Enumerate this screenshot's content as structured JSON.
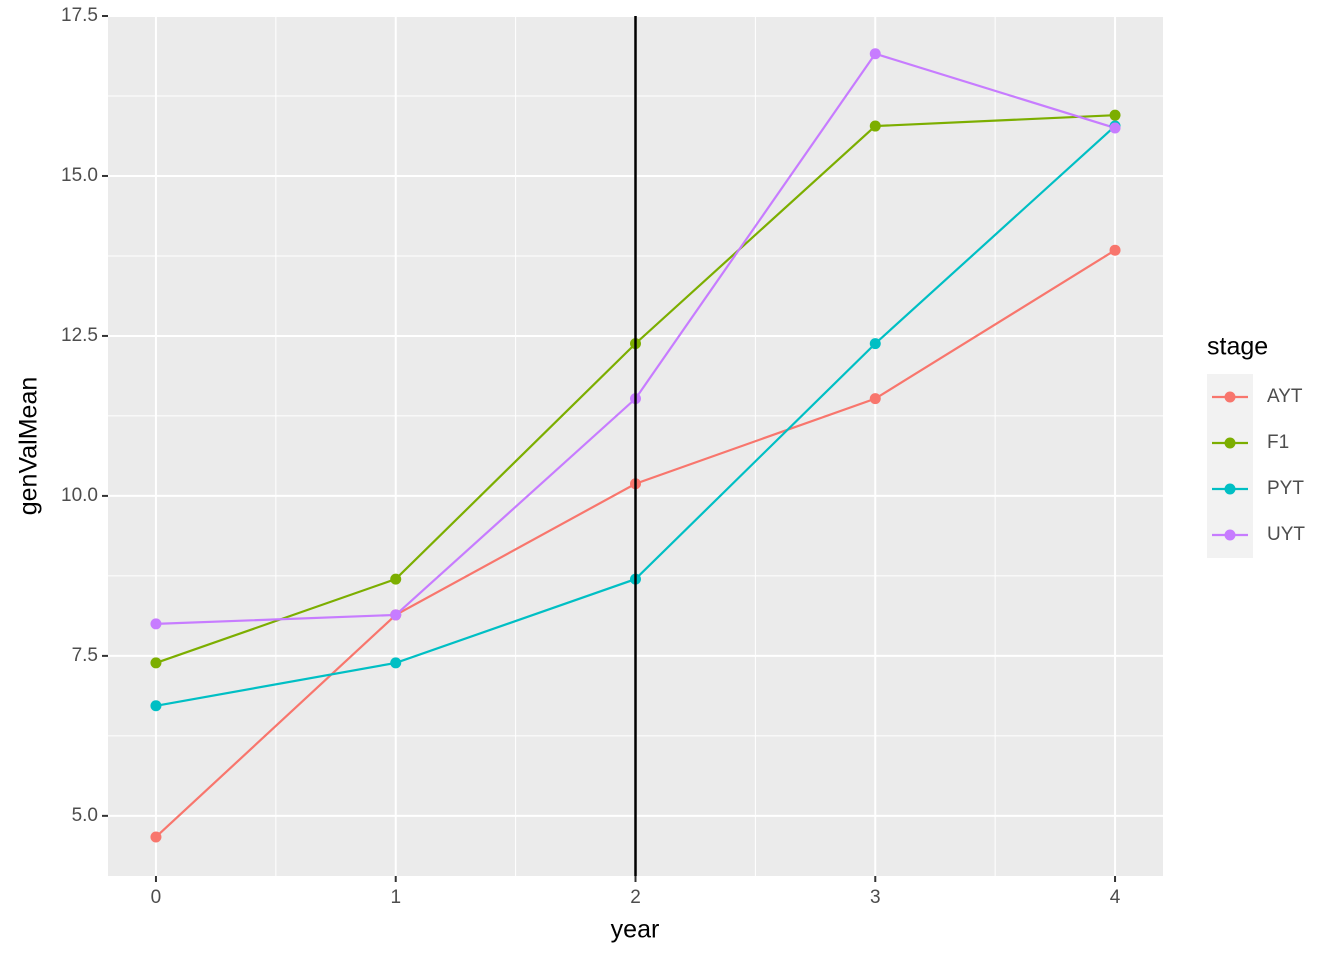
{
  "chart_data": {
    "type": "line",
    "x_label": "year",
    "y_label": "genValMean",
    "x": [
      0,
      1,
      2,
      3,
      4
    ],
    "series": [
      {
        "name": "AYT",
        "color": "#F8766D",
        "values": [
          4.67,
          8.14,
          10.19,
          11.52,
          13.84
        ]
      },
      {
        "name": "F1",
        "color": "#7CAE00",
        "values": [
          7.39,
          8.7,
          12.38,
          15.78,
          15.95
        ]
      },
      {
        "name": "PYT",
        "color": "#00BFC4",
        "values": [
          6.72,
          7.39,
          8.7,
          12.38,
          15.78
        ]
      },
      {
        "name": "UYT",
        "color": "#C77CFF",
        "values": [
          8.0,
          8.14,
          11.52,
          16.91,
          15.75
        ]
      }
    ],
    "legend_title": "stage",
    "legend_position": "right",
    "vline": 2,
    "xlim": [
      -0.2,
      4.2
    ],
    "xticks": [
      0,
      1,
      2,
      3,
      4
    ],
    "ylim": [
      4.06,
      17.5
    ],
    "yticks": [
      {
        "value": 5,
        "label": "5.0"
      },
      {
        "value": 7.5,
        "label": "7.5"
      },
      {
        "value": 10,
        "label": "10.0"
      },
      {
        "value": 12.5,
        "label": "12.5"
      },
      {
        "value": 15,
        "label": "15.0"
      },
      {
        "value": 17.5,
        "label": "17.5"
      }
    ],
    "grid": true
  }
}
